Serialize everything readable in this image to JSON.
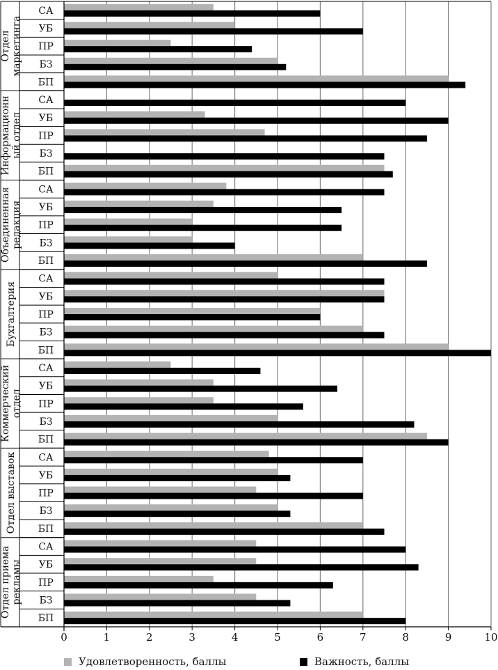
{
  "chart_data": {
    "type": "bar",
    "orientation": "horizontal",
    "xlim": [
      0,
      10
    ],
    "x_ticks": [
      "0",
      "1",
      "2",
      "3",
      "4",
      "5",
      "6",
      "7",
      "8",
      "9",
      "10"
    ],
    "grid": true,
    "legend_position": "bottom",
    "series": [
      {
        "name": "Удовлетворенность, баллы",
        "color": "#b3b3b3"
      },
      {
        "name": "Важность, баллы",
        "color": "#000000"
      }
    ],
    "groups": [
      {
        "name": "Отдел маркетинга",
        "label_lines": [
          "Отдел",
          "маркетинга"
        ],
        "items": [
          {
            "label": "СА",
            "satisfaction": 3.5,
            "importance": 6.0
          },
          {
            "label": "УБ",
            "satisfaction": 4.0,
            "importance": 7.0
          },
          {
            "label": "ПР",
            "satisfaction": 2.5,
            "importance": 4.4
          },
          {
            "label": "БЗ",
            "satisfaction": 5.0,
            "importance": 5.2
          },
          {
            "label": "БП",
            "satisfaction": 9.0,
            "importance": 9.4
          }
        ]
      },
      {
        "name": "Информационный отдел",
        "label_lines": [
          "Информационн",
          "ый отдел"
        ],
        "items": [
          {
            "label": "СА",
            "satisfaction": 0,
            "importance": 8.0
          },
          {
            "label": "УБ",
            "satisfaction": 3.3,
            "importance": 9.0
          },
          {
            "label": "ПР",
            "satisfaction": 4.7,
            "importance": 8.5
          },
          {
            "label": "БЗ",
            "satisfaction": 0,
            "importance": 7.5
          },
          {
            "label": "БП",
            "satisfaction": 7.5,
            "importance": 7.7
          }
        ]
      },
      {
        "name": "Объединенная редакция",
        "label_lines": [
          "Объединенная",
          "редакция"
        ],
        "items": [
          {
            "label": "СА",
            "satisfaction": 3.8,
            "importance": 7.5
          },
          {
            "label": "УБ",
            "satisfaction": 3.5,
            "importance": 6.5
          },
          {
            "label": "ПР",
            "satisfaction": 3.0,
            "importance": 6.5
          },
          {
            "label": "БЗ",
            "satisfaction": 3.0,
            "importance": 4.0
          },
          {
            "label": "БП",
            "satisfaction": 7.0,
            "importance": 8.5
          }
        ]
      },
      {
        "name": "Бухгалтерия",
        "label_lines": [
          "Бухгалтерия"
        ],
        "items": [
          {
            "label": "СА",
            "satisfaction": 5.0,
            "importance": 7.5
          },
          {
            "label": "УБ",
            "satisfaction": 7.5,
            "importance": 7.5
          },
          {
            "label": "ПР",
            "satisfaction": 6.0,
            "importance": 6.0
          },
          {
            "label": "БЗ",
            "satisfaction": 7.0,
            "importance": 7.5
          },
          {
            "label": "БП",
            "satisfaction": 9.0,
            "importance": 10.0
          }
        ]
      },
      {
        "name": "Коммерческий отдел",
        "label_lines": [
          "Коммерческий",
          "отдел"
        ],
        "items": [
          {
            "label": "СА",
            "satisfaction": 2.5,
            "importance": 4.6
          },
          {
            "label": "УБ",
            "satisfaction": 3.5,
            "importance": 6.4
          },
          {
            "label": "ПР",
            "satisfaction": 3.5,
            "importance": 5.6
          },
          {
            "label": "БЗ",
            "satisfaction": 5.0,
            "importance": 8.2
          },
          {
            "label": "БП",
            "satisfaction": 8.5,
            "importance": 9.0
          }
        ]
      },
      {
        "name": "Отдел выставок",
        "label_lines": [
          "Отдел выставок"
        ],
        "items": [
          {
            "label": "СА",
            "satisfaction": 4.8,
            "importance": 7.0
          },
          {
            "label": "УБ",
            "satisfaction": 5.0,
            "importance": 5.3
          },
          {
            "label": "ПР",
            "satisfaction": 4.5,
            "importance": 7.0
          },
          {
            "label": "БЗ",
            "satisfaction": 5.0,
            "importance": 5.3
          },
          {
            "label": "БП",
            "satisfaction": 7.0,
            "importance": 7.5
          }
        ]
      },
      {
        "name": "Отдел приема рекламы",
        "label_lines": [
          "Отдел приема",
          "рекламы"
        ],
        "items": [
          {
            "label": "СА",
            "satisfaction": 4.5,
            "importance": 8.0
          },
          {
            "label": "УБ",
            "satisfaction": 4.5,
            "importance": 8.3
          },
          {
            "label": "ПР",
            "satisfaction": 3.5,
            "importance": 6.3
          },
          {
            "label": "БЗ",
            "satisfaction": 4.5,
            "importance": 5.3
          },
          {
            "label": "БП",
            "satisfaction": 7.0,
            "importance": 8.0
          }
        ]
      }
    ]
  }
}
